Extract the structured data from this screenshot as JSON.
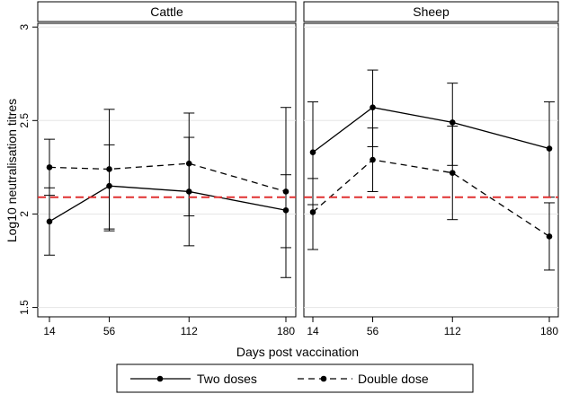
{
  "chart_data": {
    "type": "line",
    "xlabel": "Days post vaccination",
    "ylabel": "Log10 neutralisation titres",
    "x": [
      14,
      56,
      112,
      180
    ],
    "x_tick_labels": [
      "14",
      "56",
      "112",
      "180"
    ],
    "ylim": [
      1.45,
      3.02
    ],
    "y_ticks": [
      1.5,
      2,
      2.5,
      3
    ],
    "y_tick_labels": [
      "1.5",
      "2",
      "2.5",
      "3"
    ],
    "reference_line": {
      "y": 2.09,
      "color": "#e03030",
      "style": "dashed"
    },
    "panels": [
      {
        "title": "Cattle",
        "series": [
          {
            "name": "Two doses",
            "style": "solid",
            "values": [
              1.96,
              2.15,
              2.12,
              2.02
            ],
            "lower": [
              1.78,
              1.92,
              1.83,
              1.66
            ],
            "upper": [
              2.14,
              2.37,
              2.41,
              2.21
            ]
          },
          {
            "name": "Double dose",
            "style": "dashed",
            "values": [
              2.25,
              2.24,
              2.27,
              2.12
            ],
            "lower": [
              2.1,
              1.91,
              1.99,
              1.82
            ],
            "upper": [
              2.4,
              2.56,
              2.54,
              2.57
            ]
          }
        ]
      },
      {
        "title": "Sheep",
        "series": [
          {
            "name": "Two doses",
            "style": "solid",
            "values": [
              2.33,
              2.57,
              2.49,
              2.35
            ],
            "lower": [
              2.05,
              2.36,
              2.26,
              2.09
            ],
            "upper": [
              2.6,
              2.77,
              2.7,
              2.6
            ]
          },
          {
            "name": "Double dose",
            "style": "dashed",
            "values": [
              2.01,
              2.29,
              2.22,
              1.88
            ],
            "lower": [
              1.81,
              2.12,
              1.97,
              1.7
            ],
            "upper": [
              2.19,
              2.46,
              2.47,
              2.06
            ]
          }
        ]
      }
    ],
    "legend": [
      "Two doses",
      "Double dose"
    ],
    "colors": {
      "lines": "#000000",
      "reference": "#e03030",
      "frame": "#000000"
    }
  }
}
